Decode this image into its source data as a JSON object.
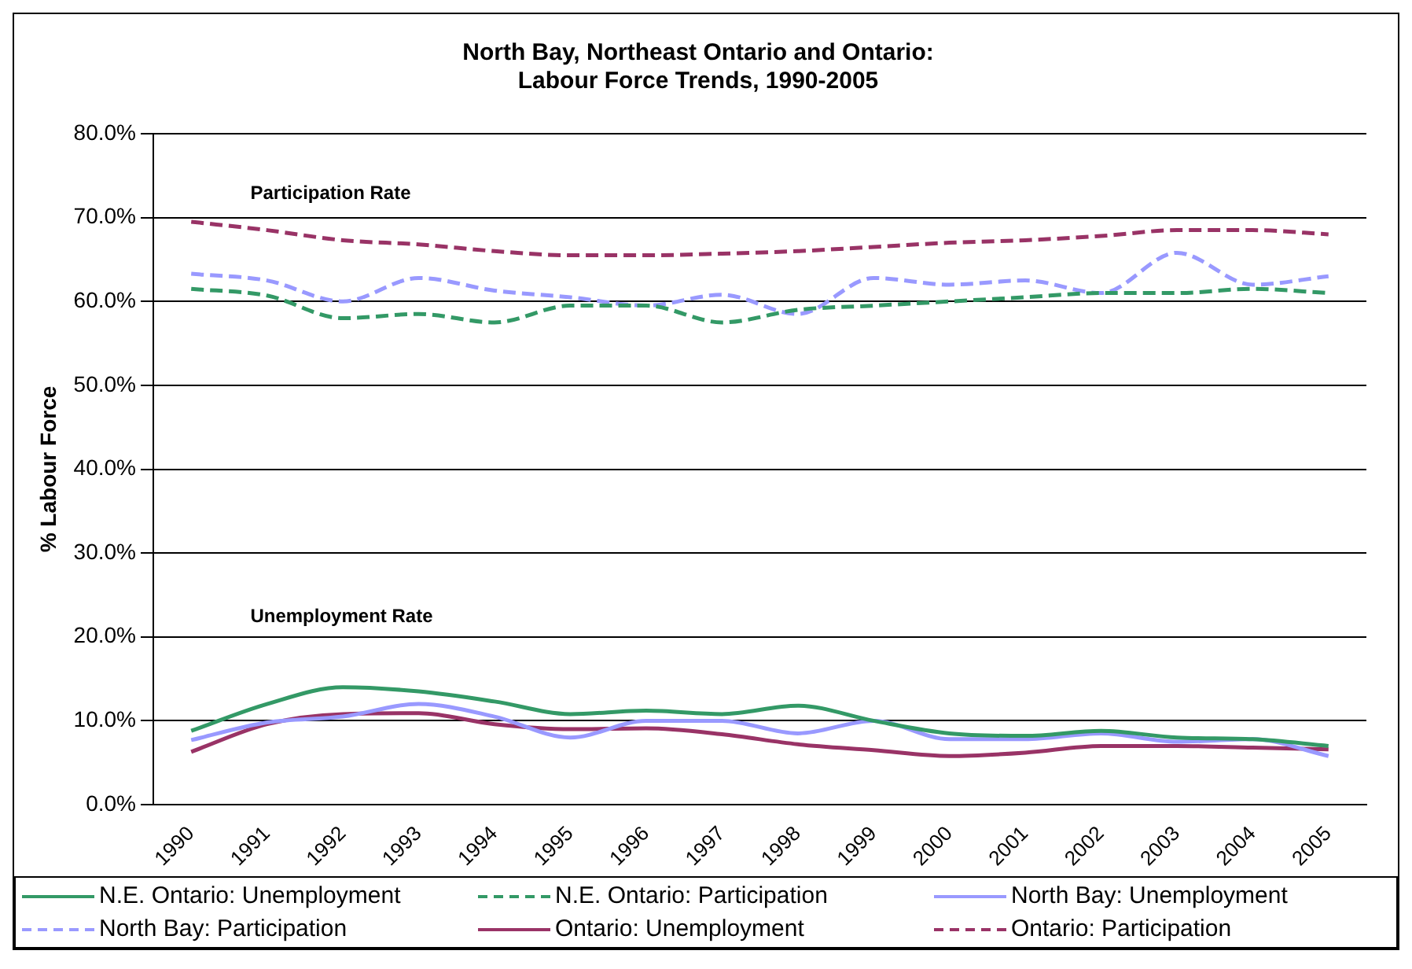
{
  "chart_data": {
    "type": "line",
    "title": "North Bay, Northeast Ontario and Ontario:\nLabour Force Trends, 1990-2005",
    "ylabel": "% Labour Force",
    "categories": [
      "1990",
      "1991",
      "1992",
      "1993",
      "1994",
      "1995",
      "1996",
      "1997",
      "1998",
      "1999",
      "2000",
      "2001",
      "2002",
      "2003",
      "2004",
      "2005"
    ],
    "series": [
      {
        "name": "N.E. Ontario: Unemployment",
        "color": "#339966",
        "line_style": "solid",
        "values": [
          8.8,
          12.0,
          14.0,
          13.5,
          12.3,
          10.8,
          11.2,
          10.8,
          11.8,
          10.0,
          8.5,
          8.2,
          8.8,
          8.0,
          7.8,
          7.0
        ]
      },
      {
        "name": "N.E. Ontario: Participation",
        "color": "#339966",
        "line_style": "dashed",
        "values": [
          61.5,
          60.7,
          58.0,
          58.5,
          57.5,
          59.5,
          59.5,
          57.5,
          59.0,
          59.5,
          60.0,
          60.5,
          61.0,
          61.0,
          61.5,
          61.0
        ]
      },
      {
        "name": "North Bay: Unemployment",
        "color": "#9999ff",
        "line_style": "solid",
        "values": [
          7.7,
          9.8,
          10.5,
          12.0,
          10.5,
          8.0,
          10.0,
          10.0,
          8.5,
          10.0,
          7.8,
          7.8,
          8.5,
          7.5,
          7.8,
          5.8
        ]
      },
      {
        "name": "North Bay: Participation",
        "color": "#9999ff",
        "line_style": "dashed",
        "values": [
          63.3,
          62.5,
          60.0,
          62.8,
          61.3,
          60.5,
          59.5,
          60.8,
          58.5,
          62.8,
          62.0,
          62.5,
          61.0,
          65.8,
          62.0,
          63.0
        ]
      },
      {
        "name": "Ontario: Unemployment",
        "color": "#993366",
        "line_style": "solid",
        "values": [
          6.3,
          9.6,
          10.8,
          10.9,
          9.6,
          9.0,
          9.1,
          8.4,
          7.2,
          6.5,
          5.8,
          6.2,
          7.0,
          7.0,
          6.8,
          6.6
        ]
      },
      {
        "name": "Ontario: Participation",
        "color": "#993366",
        "line_style": "dashed",
        "values": [
          69.5,
          68.5,
          67.3,
          66.8,
          66.0,
          65.5,
          65.5,
          65.7,
          66.0,
          66.5,
          67.0,
          67.3,
          67.8,
          68.5,
          68.5,
          68.0
        ]
      }
    ],
    "ylim": [
      0,
      80
    ],
    "yticks": [
      {
        "value": 0,
        "label": "0.0%"
      },
      {
        "value": 10,
        "label": "10.0%"
      },
      {
        "value": 20,
        "label": "20.0%"
      },
      {
        "value": 30,
        "label": "30.0%"
      },
      {
        "value": 40,
        "label": "40.0%"
      },
      {
        "value": 50,
        "label": "50.0%"
      },
      {
        "value": 60,
        "label": "60.0%"
      },
      {
        "value": 70,
        "label": "70.0%"
      },
      {
        "value": 80,
        "label": "80.0%"
      }
    ],
    "grid": "y",
    "legend": "bottom",
    "marker": "none",
    "annotations": [
      "Participation Rate",
      "Unemployment Rate"
    ]
  }
}
